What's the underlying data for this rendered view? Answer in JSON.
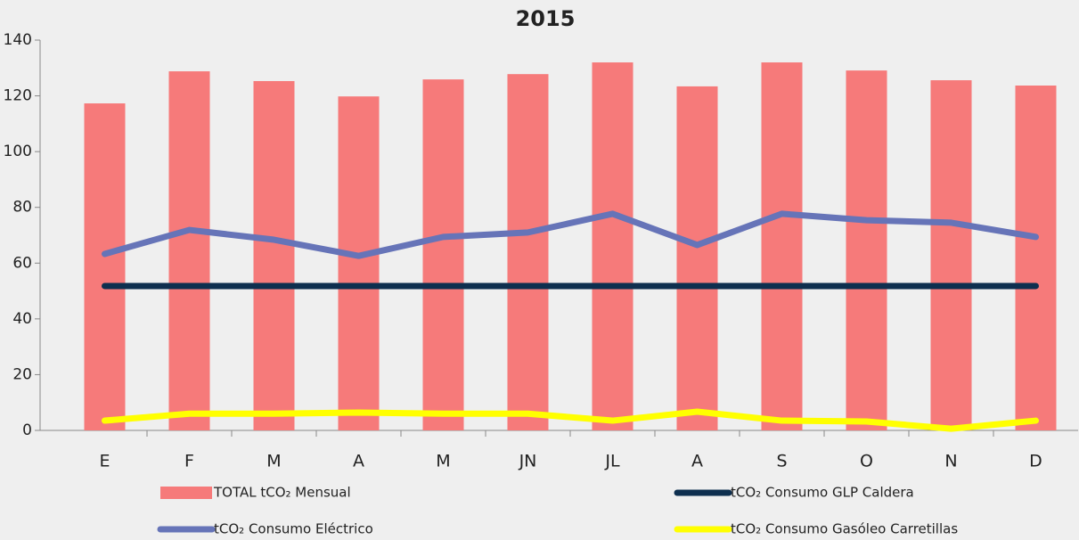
{
  "chart_data": {
    "type": "bar",
    "title": "2015",
    "categories": [
      "E",
      "F",
      "M",
      "A",
      "M",
      "JN",
      "JL",
      "A",
      "S",
      "O",
      "N",
      "D"
    ],
    "series": [
      {
        "name": "TOTAL tCO₂ Mensual",
        "type": "bar",
        "color": "#f67a7a",
        "values": [
          117.3,
          128.8,
          125.3,
          119.8,
          125.9,
          127.8,
          132,
          123.4,
          132,
          129.1,
          125.6,
          123.7
        ]
      },
      {
        "name": "tCO₂ Consumo GLP Caldera",
        "type": "line",
        "color": "#0e2f4f",
        "values": [
          51.8,
          51.8,
          51.8,
          51.8,
          51.8,
          51.8,
          51.8,
          51.8,
          51.8,
          51.8,
          51.8,
          51.8
        ]
      },
      {
        "name": "tCO₂ Consumo Eléctrico",
        "type": "line",
        "color": "#6674b8",
        "values": [
          63.3,
          71.9,
          68.4,
          62.6,
          69.4,
          71,
          77.7,
          66.5,
          77.7,
          75.4,
          74.5,
          69.4
        ]
      },
      {
        "name": "tCO₂ Consumo Gasóleo Carretillas",
        "type": "line",
        "color": "#ffff00",
        "values": [
          3.5,
          6,
          6,
          6.4,
          6,
          6,
          3.5,
          6.7,
          3.5,
          3.2,
          0.6,
          3.5
        ]
      }
    ],
    "ylim": [
      0,
      140
    ],
    "yticks": [
      0,
      20,
      40,
      60,
      80,
      100,
      120,
      140
    ]
  }
}
